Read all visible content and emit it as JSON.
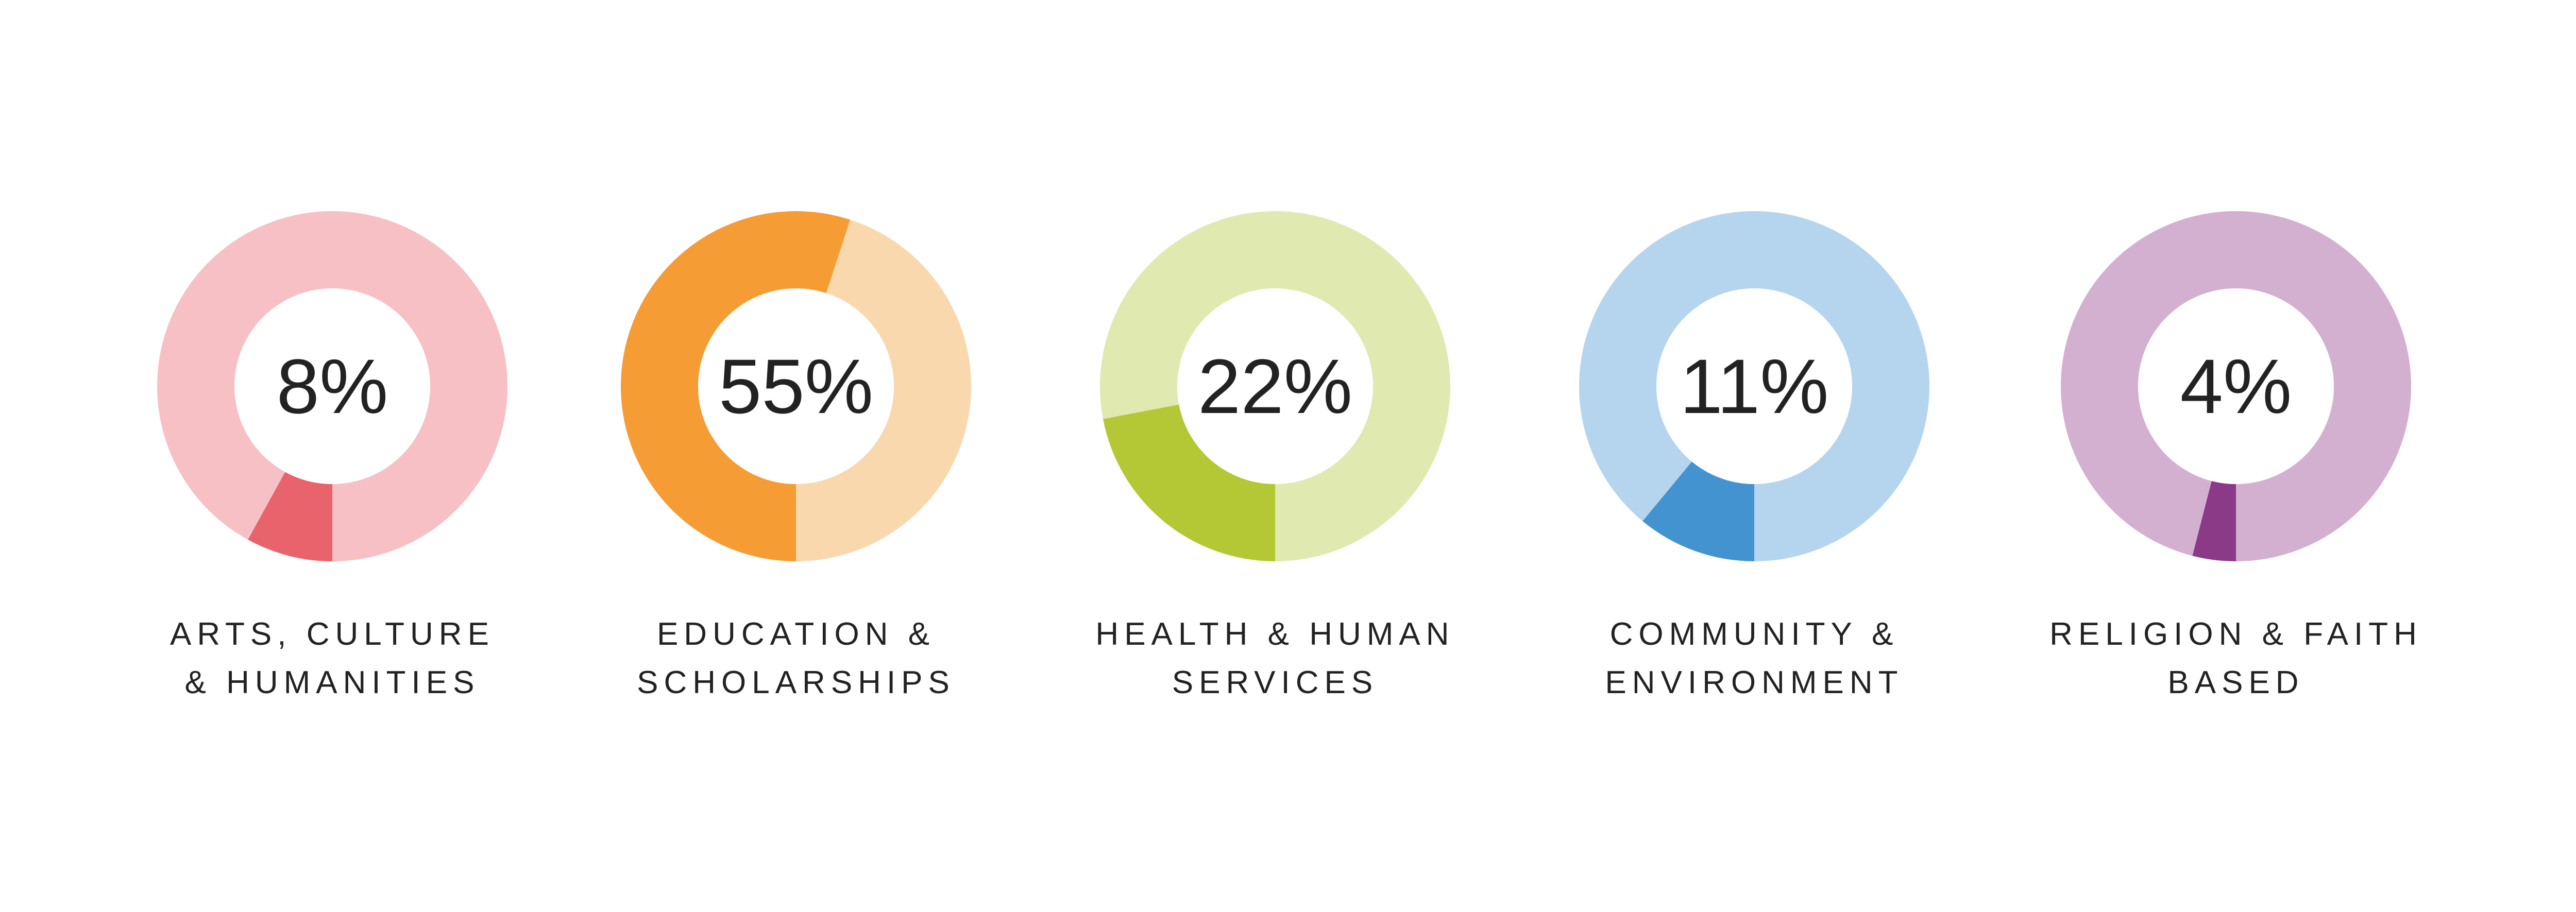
{
  "chart_data": {
    "type": "pie",
    "variant": "donut",
    "categories": [
      [
        "ARTS, CULTURE",
        "& HUMANITIES"
      ],
      [
        "EDUCATION &",
        "SCHOLARSHIPS"
      ],
      [
        "HEALTH & HUMAN",
        "SERVICES"
      ],
      [
        "COMMUNITY &",
        "ENVIRONMENT"
      ],
      [
        "RELIGION & FAITH",
        "BASED"
      ]
    ],
    "values": [
      8,
      55,
      22,
      11,
      4
    ],
    "value_labels": [
      "8%",
      "55%",
      "22%",
      "11%",
      "4%"
    ],
    "colors": {
      "highlight": [
        "#E9636D",
        "#F59C35",
        "#B3C834",
        "#4393D0",
        "#8B3A88"
      ],
      "remainder": [
        "#F6C0C5",
        "#F9D8AE",
        "#E0E9B0",
        "#B5D5EE",
        "#D3B0D0"
      ]
    }
  }
}
